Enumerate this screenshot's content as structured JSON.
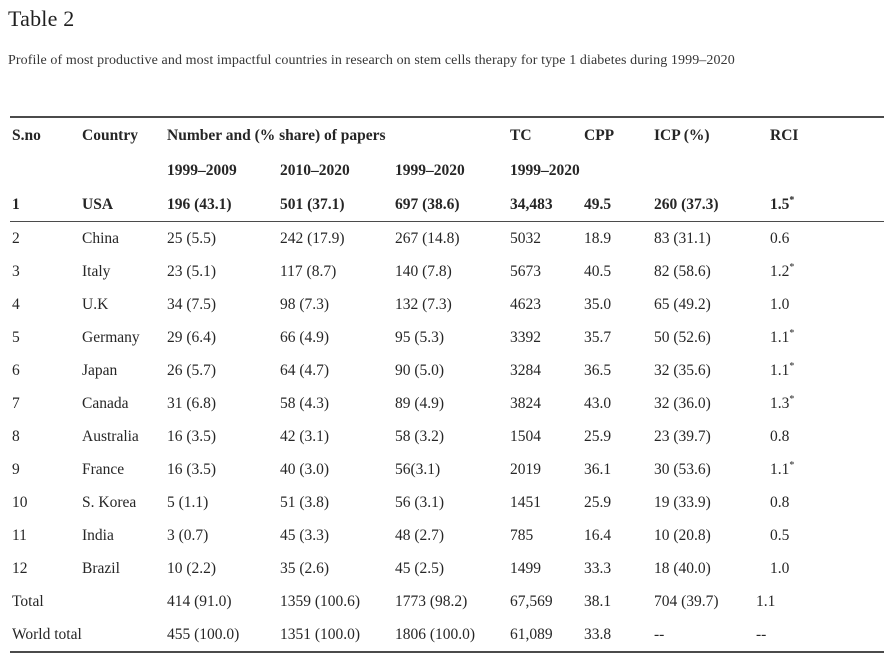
{
  "page": {
    "title": "Table 2",
    "caption": "Profile of most productive and most impactful countries in research on stem cells therapy for type 1 diabetes during 1999–2020"
  },
  "table": {
    "star_symbol": "*",
    "header": {
      "sno": "S.no",
      "country": "Country",
      "papers_group": "Number and (% share) of papers",
      "tc": "TC",
      "cpp": "CPP",
      "icp": "ICP (%)",
      "rci": "RCI",
      "sub_p1": "1999–2009",
      "sub_p2": "2010–2020",
      "sub_p3": "1999–2020",
      "sub_tc": "1999–2020"
    },
    "rows": [
      {
        "sno": "1",
        "country": "USA",
        "p1": "196 (43.1)",
        "p2": "501 (37.1)",
        "p3": "697 (38.6)",
        "tc": "34,483",
        "cpp": "49.5",
        "icp": "260 (37.3)",
        "rci": "1.5",
        "rci_star": true,
        "bold": true
      },
      {
        "sno": "2",
        "country": "China",
        "p1": "25 (5.5)",
        "p2": "242 (17.9)",
        "p3": "267 (14.8)",
        "tc": "5032",
        "cpp": "18.9",
        "icp": "83 (31.1)",
        "rci": "0.6",
        "rci_star": false
      },
      {
        "sno": "3",
        "country": "Italy",
        "p1": "23 (5.1)",
        "p2": "117 (8.7)",
        "p3": "140 (7.8)",
        "tc": "5673",
        "cpp": "40.5",
        "icp": "82 (58.6)",
        "rci": "1.2",
        "rci_star": true
      },
      {
        "sno": "4",
        "country": "U.K",
        "p1": "34 (7.5)",
        "p2": "98 (7.3)",
        "p3": "132 (7.3)",
        "tc": "4623",
        "cpp": "35.0",
        "icp": "65 (49.2)",
        "rci": "1.0",
        "rci_star": false
      },
      {
        "sno": "5",
        "country": "Germany",
        "p1": "29 (6.4)",
        "p2": "66 (4.9)",
        "p3": "95 (5.3)",
        "tc": "3392",
        "cpp": "35.7",
        "icp": "50 (52.6)",
        "rci": "1.1",
        "rci_star": true
      },
      {
        "sno": "6",
        "country": "Japan",
        "p1": "26 (5.7)",
        "p2": "64 (4.7)",
        "p3": "90 (5.0)",
        "tc": "3284",
        "cpp": "36.5",
        "icp": "32 (35.6)",
        "rci": "1.1",
        "rci_star": true
      },
      {
        "sno": "7",
        "country": "Canada",
        "p1": "31 (6.8)",
        "p2": "58 (4.3)",
        "p3": "89 (4.9)",
        "tc": "3824",
        "cpp": "43.0",
        "icp": "32 (36.0)",
        "rci": "1.3",
        "rci_star": true
      },
      {
        "sno": "8",
        "country": "Australia",
        "p1": "16 (3.5)",
        "p2": "42 (3.1)",
        "p3": "58 (3.2)",
        "tc": "1504",
        "cpp": "25.9",
        "icp": "23 (39.7)",
        "rci": "0.8",
        "rci_star": false
      },
      {
        "sno": "9",
        "country": "France",
        "p1": "16 (3.5)",
        "p2": "40 (3.0)",
        "p3": "56(3.1)",
        "tc": "2019",
        "cpp": "36.1",
        "icp": "30 (53.6)",
        "rci": "1.1",
        "rci_star": true
      },
      {
        "sno": "10",
        "country": "S. Korea",
        "p1": "5 (1.1)",
        "p2": "51 (3.8)",
        "p3": "56 (3.1)",
        "tc": "1451",
        "cpp": "25.9",
        "icp": "19 (33.9)",
        "rci": "0.8",
        "rci_star": false
      },
      {
        "sno": "11",
        "country": "India",
        "p1": "3 (0.7)",
        "p2": "45 (3.3)",
        "p3": "48 (2.7)",
        "tc": "785",
        "cpp": "16.4",
        "icp": "10 (20.8)",
        "rci": "0.5",
        "rci_star": false
      },
      {
        "sno": "12",
        "country": "Brazil",
        "p1": "10 (2.2)",
        "p2": "35 (2.6)",
        "p3": "45 (2.5)",
        "tc": "1499",
        "cpp": "33.3",
        "icp": "18 (40.0)",
        "rci": "1.0",
        "rci_star": false
      },
      {
        "span_label": "Total",
        "p1": "414 (91.0)",
        "p2": "1359 (100.6)",
        "p3": "1773 (98.2)",
        "tc": "67,569",
        "cpp": "38.1",
        "icp": "704 (39.7)",
        "rci": "1.1",
        "rci_star": false
      },
      {
        "span_label": "World total",
        "p1": "455 (100.0)",
        "p2": "1351 (100.0)",
        "p3": "1806 (100.0)",
        "tc": "61,089",
        "cpp": "33.8",
        "icp": "--",
        "rci": "--",
        "rci_star": false
      }
    ]
  }
}
